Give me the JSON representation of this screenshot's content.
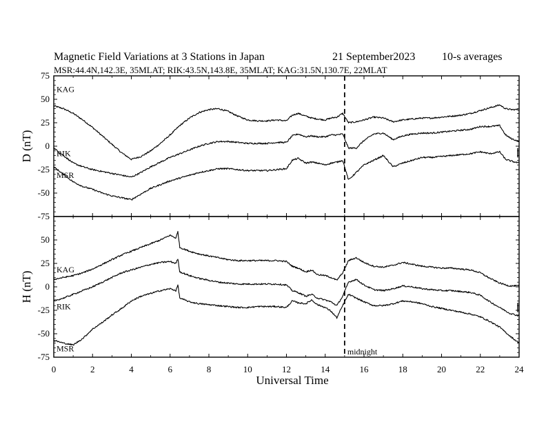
{
  "header": {
    "title": "Magnetic Field Variations at 3 Stations in Japan",
    "date": "21 September2023",
    "averaging": "10-s averages",
    "stations": "MSR:44.4N,142.3E, 35MLAT;  RIK:43.5N,143.8E, 35MLAT;  KAG:31.5N,130.7E, 22MLAT"
  },
  "chart_data": {
    "type": "line",
    "xlabel": "Universal Time",
    "xlim": [
      0,
      24
    ],
    "xticks": [
      0,
      2,
      4,
      6,
      8,
      10,
      12,
      14,
      16,
      18,
      20,
      22,
      24
    ],
    "annotations": [
      {
        "text": "midnight",
        "x": 15
      }
    ],
    "colors": {
      "line": "#000000",
      "axis": "#000000"
    },
    "panels": [
      {
        "ylabel": "D (nT)",
        "ylim": [
          -75,
          75
        ],
        "yticks": [
          -75,
          -50,
          -25,
          0,
          25,
          50,
          75
        ],
        "series": [
          {
            "name": "KAG",
            "x": [
              0,
              0.5,
              1,
              1.5,
              2,
              2.5,
              3,
              3.5,
              4,
              4.5,
              5,
              5.5,
              6,
              6.5,
              7,
              7.5,
              8,
              8.5,
              9,
              9.5,
              10,
              10.5,
              11,
              11.5,
              12,
              12.3,
              12.6,
              13,
              13.3,
              13.6,
              14,
              14.3,
              14.6,
              14.9,
              15.2,
              15.6,
              16,
              16.5,
              17,
              17.5,
              18,
              18.5,
              19,
              19.5,
              20,
              20.5,
              21,
              21.5,
              22,
              22.5,
              23,
              23.3,
              23.6,
              24
            ],
            "values": [
              43,
              40,
              35,
              28,
              20,
              11,
              2,
              -7,
              -14,
              -11,
              -5,
              3,
              12,
              22,
              30,
              36,
              39,
              40,
              37,
              32,
              28,
              27,
              27,
              28,
              27,
              33,
              35,
              32,
              30,
              29,
              28,
              30,
              31,
              35,
              25,
              26,
              28,
              31,
              30,
              26,
              28,
              29,
              30,
              30,
              31,
              32,
              33,
              35,
              38,
              41,
              44,
              40,
              39,
              39
            ]
          },
          {
            "name": "RIK",
            "x": [
              0,
              0.5,
              1,
              1.5,
              2,
              2.5,
              3,
              3.5,
              4,
              4.5,
              5,
              5.5,
              6,
              6.5,
              7,
              7.5,
              8,
              8.5,
              9,
              9.5,
              10,
              10.5,
              11,
              11.5,
              12,
              12.3,
              12.6,
              13,
              13.3,
              13.6,
              14,
              14.3,
              14.6,
              14.9,
              15.2,
              15.6,
              16,
              16.5,
              17,
              17.5,
              18,
              18.5,
              19,
              19.5,
              20,
              20.5,
              21,
              21.5,
              22,
              22.5,
              23,
              23.3,
              23.6,
              24
            ],
            "values": [
              -2,
              -10,
              -18,
              -22,
              -25,
              -27,
              -29,
              -31,
              -33,
              -28,
              -22,
              -17,
              -12,
              -8,
              -4,
              0,
              3,
              5,
              5,
              4,
              3,
              3,
              3,
              4,
              4,
              11,
              13,
              10,
              11,
              10,
              10,
              12,
              12,
              13,
              -2,
              -2,
              6,
              13,
              14,
              7,
              11,
              13,
              14,
              14,
              15,
              16,
              17,
              18,
              21,
              21,
              22,
              12,
              8,
              5
            ]
          },
          {
            "name": "MSR",
            "x": [
              0,
              0.5,
              1,
              1.5,
              2,
              2.5,
              3,
              3.5,
              4,
              4.5,
              5,
              5.5,
              6,
              6.5,
              7,
              7.5,
              8,
              8.5,
              9,
              9.5,
              10,
              10.5,
              11,
              11.5,
              12,
              12.3,
              12.6,
              13,
              13.3,
              13.6,
              14,
              14.3,
              14.6,
              14.9,
              15.2,
              15.6,
              16,
              16.5,
              17,
              17.5,
              18,
              18.5,
              19,
              19.5,
              20,
              20.5,
              21,
              21.5,
              22,
              22.5,
              23,
              23.3,
              23.6,
              24
            ],
            "values": [
              -22,
              -30,
              -38,
              -43,
              -46,
              -50,
              -53,
              -55,
              -57,
              -51,
              -45,
              -41,
              -37,
              -34,
              -31,
              -28,
              -26,
              -24,
              -24,
              -25,
              -26,
              -26,
              -26,
              -25,
              -24,
              -15,
              -13,
              -18,
              -17,
              -18,
              -20,
              -18,
              -17,
              -15,
              -36,
              -28,
              -20,
              -15,
              -10,
              -22,
              -18,
              -15,
              -12,
              -12,
              -11,
              -10,
              -9,
              -8,
              -6,
              -8,
              -6,
              -14,
              -16,
              -18
            ]
          }
        ]
      },
      {
        "ylabel": "H (nT)",
        "ylim": [
          -75,
          75
        ],
        "yticks": [
          -75,
          -50,
          -25,
          0,
          25,
          50,
          75
        ],
        "series": [
          {
            "name": "KAG",
            "x": [
              0,
              0.5,
              1,
              1.5,
              2,
              2.5,
              3,
              3.5,
              4,
              4.5,
              5,
              5.5,
              6,
              6.3,
              6.4,
              6.5,
              7,
              7.5,
              8,
              8.5,
              9,
              9.5,
              10,
              10.5,
              11,
              11.5,
              12,
              12.3,
              12.6,
              13,
              13.3,
              13.6,
              14,
              14.3,
              14.6,
              14.9,
              15.2,
              15.6,
              16,
              16.5,
              17,
              17.5,
              18,
              18.5,
              19,
              19.5,
              20,
              20.5,
              21,
              21.5,
              22,
              22.5,
              23,
              23.5,
              24
            ],
            "values": [
              8,
              10,
              12,
              15,
              19,
              24,
              29,
              34,
              38,
              42,
              46,
              50,
              55,
              52,
              59,
              42,
              38,
              35,
              33,
              31,
              29,
              28,
              28,
              28,
              28,
              28,
              27,
              22,
              20,
              16,
              18,
              13,
              12,
              10,
              7,
              15,
              28,
              31,
              26,
              22,
              21,
              23,
              26,
              24,
              22,
              21,
              20,
              20,
              19,
              18,
              15,
              9,
              4,
              1,
              1
            ]
          },
          {
            "name": "RIK",
            "x": [
              0,
              0.5,
              1,
              1.5,
              2,
              2.5,
              3,
              3.5,
              4,
              4.5,
              5,
              5.5,
              6,
              6.3,
              6.4,
              6.5,
              7,
              7.5,
              8,
              8.5,
              9,
              9.5,
              10,
              10.5,
              11,
              11.5,
              12,
              12.3,
              12.6,
              13,
              13.3,
              13.6,
              14,
              14.3,
              14.6,
              14.9,
              15.2,
              15.6,
              16,
              16.5,
              17,
              17.5,
              18,
              18.5,
              19,
              19.5,
              20,
              20.5,
              21,
              21.5,
              22,
              22.5,
              23,
              23.5,
              24
            ],
            "values": [
              -15,
              -12,
              -8,
              -4,
              0,
              5,
              10,
              15,
              18,
              21,
              24,
              26,
              27,
              25,
              30,
              16,
              12,
              9,
              7,
              5,
              4,
              3,
              3,
              3,
              3,
              3,
              2,
              -4,
              -6,
              -10,
              -8,
              -12,
              -14,
              -16,
              -20,
              -10,
              5,
              8,
              2,
              -3,
              -4,
              -2,
              1,
              0,
              -2,
              -3,
              -4,
              -4,
              -5,
              -6,
              -9,
              -16,
              -22,
              -28,
              -31
            ]
          },
          {
            "name": "MSR",
            "x": [
              0,
              0.5,
              1,
              1.5,
              2,
              2.5,
              3,
              3.5,
              4,
              4.5,
              5,
              5.5,
              6,
              6.3,
              6.4,
              6.5,
              7,
              7.5,
              8,
              8.5,
              9,
              9.5,
              10,
              10.5,
              11,
              11.5,
              12,
              12.3,
              12.6,
              13,
              13.3,
              13.6,
              14,
              14.3,
              14.6,
              14.9,
              15.2,
              15.6,
              16,
              16.5,
              17,
              17.5,
              18,
              18.5,
              19,
              19.5,
              20,
              20.5,
              21,
              21.5,
              22,
              22.5,
              23,
              23.5,
              24
            ],
            "values": [
              -57,
              -60,
              -62,
              -55,
              -45,
              -38,
              -30,
              -23,
              -15,
              -10,
              -7,
              -4,
              -2,
              -4,
              2,
              -12,
              -16,
              -18,
              -19,
              -20,
              -21,
              -22,
              -22,
              -21,
              -21,
              -21,
              -22,
              -15,
              -17,
              -18,
              -14,
              -19,
              -22,
              -26,
              -33,
              -20,
              -8,
              -12,
              -16,
              -20,
              -20,
              -18,
              -15,
              -16,
              -18,
              -21,
              -23,
              -25,
              -27,
              -29,
              -32,
              -37,
              -43,
              -52,
              -60
            ]
          }
        ]
      }
    ]
  }
}
